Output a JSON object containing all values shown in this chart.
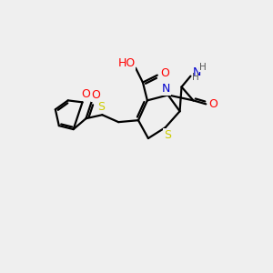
{
  "background_color": "#efefef",
  "atom_colors": {
    "C": "#000000",
    "N": "#0000cc",
    "O": "#ff0000",
    "S": "#cccc00",
    "H": "#555555"
  },
  "bond_color": "#000000",
  "bond_width": 1.6,
  "figsize": [
    3.0,
    3.0
  ],
  "dpi": 100
}
